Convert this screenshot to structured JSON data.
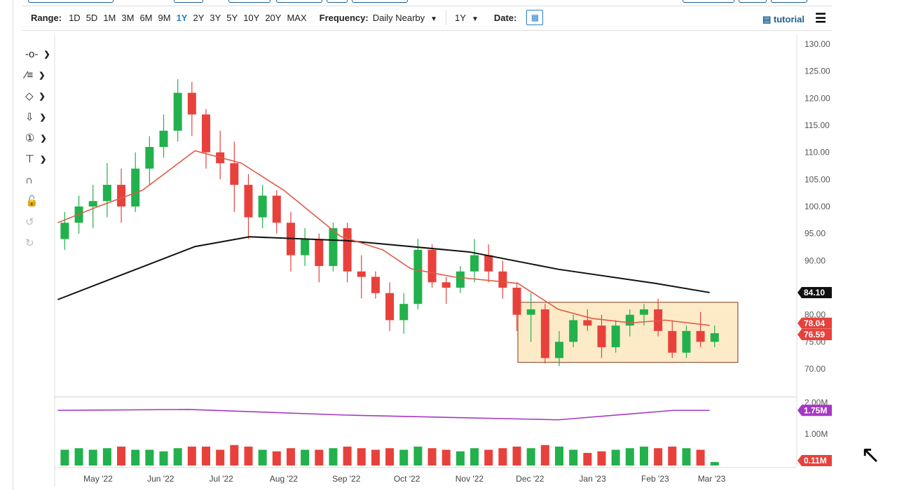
{
  "toolbar": {
    "range_label": "Range:",
    "ranges": [
      "1D",
      "5D",
      "1M",
      "3M",
      "6M",
      "9M",
      "1Y",
      "2Y",
      "3Y",
      "5Y",
      "10Y",
      "20Y",
      "MAX"
    ],
    "active_range": "1Y",
    "frequency_label": "Frequency:",
    "frequency_value": "Daily Nearby",
    "period_value": "1Y",
    "date_label": "Date:",
    "tutorial_label": "tutorial"
  },
  "tools": [
    "crosshair",
    "trend-line",
    "shapes",
    "arrow",
    "annotation-number",
    "measure",
    "magnet",
    "lock",
    "undo",
    "redo"
  ],
  "colors": {
    "up": "#22b14c",
    "down": "#e8413c",
    "ma50": "#e05a47",
    "ma200": "#111111",
    "volume_avg": "#a637c4",
    "annotation_fill": "#fdebc8",
    "annotation_stroke": "#7a3b20",
    "accent": "#2a7fc6"
  },
  "chart_data": {
    "type": "candlestick",
    "ylim": [
      70,
      130
    ],
    "y_ticks": [
      "130.00",
      "125.00",
      "120.00",
      "115.00",
      "110.00",
      "105.00",
      "100.00",
      "95.00",
      "90.00",
      "80.00",
      "75.00",
      "70.00"
    ],
    "volume_ticks": [
      "2.00M",
      "1.00M"
    ],
    "x_ticks": [
      [
        "2022-05-01",
        "May '22"
      ],
      [
        "2022-06-01",
        "Jun '22"
      ],
      [
        "2022-07-01",
        "Jul '22"
      ],
      [
        "2022-08-01",
        "Aug '22"
      ],
      [
        "2022-09-01",
        "Sep '22"
      ],
      [
        "2022-10-01",
        "Oct '22"
      ],
      [
        "2022-11-01",
        "Nov '22"
      ],
      [
        "2022-12-01",
        "Dec '22"
      ],
      [
        "2023-01-01",
        "Jan '23"
      ],
      [
        "2023-02-01",
        "Feb '23"
      ],
      [
        "2023-03-01",
        "Mar '23"
      ]
    ],
    "price_labels": {
      "ma200": "84.10",
      "ma50": "78.04",
      "last": "76.59",
      "volume_avg": "1.75M",
      "last_volume": "0.11M"
    },
    "ohlcv": [
      [
        "2022-04-11",
        94,
        99,
        92,
        97,
        0.5
      ],
      [
        "2022-04-18",
        97,
        102,
        95,
        100,
        0.55
      ],
      [
        "2022-04-25",
        100,
        104,
        96,
        101,
        0.5
      ],
      [
        "2022-05-02",
        101,
        108,
        98,
        104,
        0.55
      ],
      [
        "2022-05-09",
        104,
        107,
        97,
        100,
        0.6
      ],
      [
        "2022-05-16",
        100,
        110,
        99,
        107,
        0.5
      ],
      [
        "2022-05-23",
        107,
        113,
        104,
        111,
        0.5
      ],
      [
        "2022-05-30",
        111,
        117,
        109,
        114,
        0.45
      ],
      [
        "2022-06-06",
        114,
        123.5,
        112,
        121,
        0.55
      ],
      [
        "2022-06-13",
        121,
        123,
        113,
        117,
        0.6
      ],
      [
        "2022-06-20",
        117,
        118,
        107,
        110,
        0.6
      ],
      [
        "2022-06-27",
        110,
        114,
        105,
        108,
        0.5
      ],
      [
        "2022-07-04",
        108,
        112,
        99,
        104,
        0.65
      ],
      [
        "2022-07-11",
        104,
        106,
        94,
        98,
        0.6
      ],
      [
        "2022-07-18",
        98,
        104,
        96,
        102,
        0.5
      ],
      [
        "2022-07-25",
        102,
        103,
        95,
        97,
        0.45
      ],
      [
        "2022-08-01",
        97,
        99,
        88,
        91,
        0.55
      ],
      [
        "2022-08-08",
        91,
        96,
        89,
        94,
        0.5
      ],
      [
        "2022-08-15",
        94,
        95,
        86,
        89,
        0.5
      ],
      [
        "2022-08-22",
        89,
        97,
        88,
        96,
        0.55
      ],
      [
        "2022-08-29",
        96,
        97,
        86,
        88,
        0.6
      ],
      [
        "2022-09-05",
        88,
        91,
        83,
        87,
        0.55
      ],
      [
        "2022-09-12",
        87,
        88,
        83,
        84,
        0.5
      ],
      [
        "2022-09-19",
        84,
        86,
        77,
        79,
        0.55
      ],
      [
        "2022-09-26",
        79,
        84,
        76.5,
        82,
        0.5
      ],
      [
        "2022-10-03",
        82,
        94,
        81,
        92,
        0.6
      ],
      [
        "2022-10-10",
        92,
        93,
        85,
        86,
        0.55
      ],
      [
        "2022-10-17",
        86,
        87,
        82,
        85,
        0.5
      ],
      [
        "2022-10-24",
        85,
        89,
        84,
        88,
        0.45
      ],
      [
        "2022-10-31",
        88,
        94,
        86,
        91,
        0.55
      ],
      [
        "2022-11-07",
        91,
        93,
        86,
        88,
        0.5
      ],
      [
        "2022-11-14",
        88,
        90,
        83,
        85,
        0.55
      ],
      [
        "2022-11-21",
        85,
        86,
        77,
        80,
        0.6
      ],
      [
        "2022-11-28",
        80,
        84,
        75,
        81,
        0.55
      ],
      [
        "2022-12-05",
        81,
        82,
        71,
        72,
        0.65
      ],
      [
        "2022-12-12",
        72,
        77,
        70.5,
        75,
        0.6
      ],
      [
        "2022-12-19",
        75,
        80,
        74,
        79,
        0.5
      ],
      [
        "2022-12-26",
        79,
        81,
        77,
        78,
        0.4
      ],
      [
        "2023-01-02",
        78,
        80,
        72,
        74,
        0.45
      ],
      [
        "2023-01-09",
        74,
        79,
        73,
        78,
        0.5
      ],
      [
        "2023-01-16",
        78,
        81,
        76,
        80,
        0.55
      ],
      [
        "2023-01-23",
        80,
        82,
        78,
        81,
        0.6
      ],
      [
        "2023-01-30",
        81,
        83,
        76,
        77,
        0.55
      ],
      [
        "2023-02-06",
        77,
        79,
        72,
        73,
        0.6
      ],
      [
        "2023-02-13",
        73,
        78,
        72,
        77,
        0.55
      ],
      [
        "2023-02-20",
        77,
        80.5,
        74,
        75,
        0.5
      ],
      [
        "2023-02-27",
        75,
        78,
        74,
        76.59,
        0.11
      ]
    ],
    "ma50": [
      [
        "2022-04-11",
        97
      ],
      [
        "2022-05-01",
        100
      ],
      [
        "2022-05-23",
        103
      ],
      [
        "2022-06-18",
        110.3
      ],
      [
        "2022-07-11",
        108
      ],
      [
        "2022-08-01",
        103
      ],
      [
        "2022-08-29",
        94.5
      ],
      [
        "2022-09-19",
        92
      ],
      [
        "2022-10-03",
        88.5
      ],
      [
        "2022-10-24",
        87
      ],
      [
        "2022-11-25",
        85.8
      ],
      [
        "2022-12-15",
        81
      ],
      [
        "2023-01-01",
        79.3
      ],
      [
        "2023-01-20",
        78.5
      ],
      [
        "2023-02-06",
        79
      ],
      [
        "2023-02-28",
        78.04
      ]
    ],
    "ma200": [
      [
        "2022-04-11",
        82.8
      ],
      [
        "2022-05-15",
        87.7
      ],
      [
        "2022-06-18",
        92.6
      ],
      [
        "2022-07-15",
        94.4
      ],
      [
        "2022-09-01",
        93.7
      ],
      [
        "2022-11-01",
        91.6
      ],
      [
        "2022-12-15",
        88.4
      ],
      [
        "2023-02-01",
        85.8
      ],
      [
        "2023-02-28",
        84.1
      ]
    ],
    "volume_avg": [
      [
        "2022-04-11",
        1.75
      ],
      [
        "2022-06-15",
        1.78
      ],
      [
        "2022-09-01",
        1.6
      ],
      [
        "2022-12-15",
        1.45
      ],
      [
        "2023-02-10",
        1.75
      ],
      [
        "2023-02-28",
        1.75
      ]
    ],
    "annotation_box": {
      "from": "2022-11-25",
      "to": "2023-03-14",
      "low": 71.2,
      "high": 82.3
    }
  }
}
